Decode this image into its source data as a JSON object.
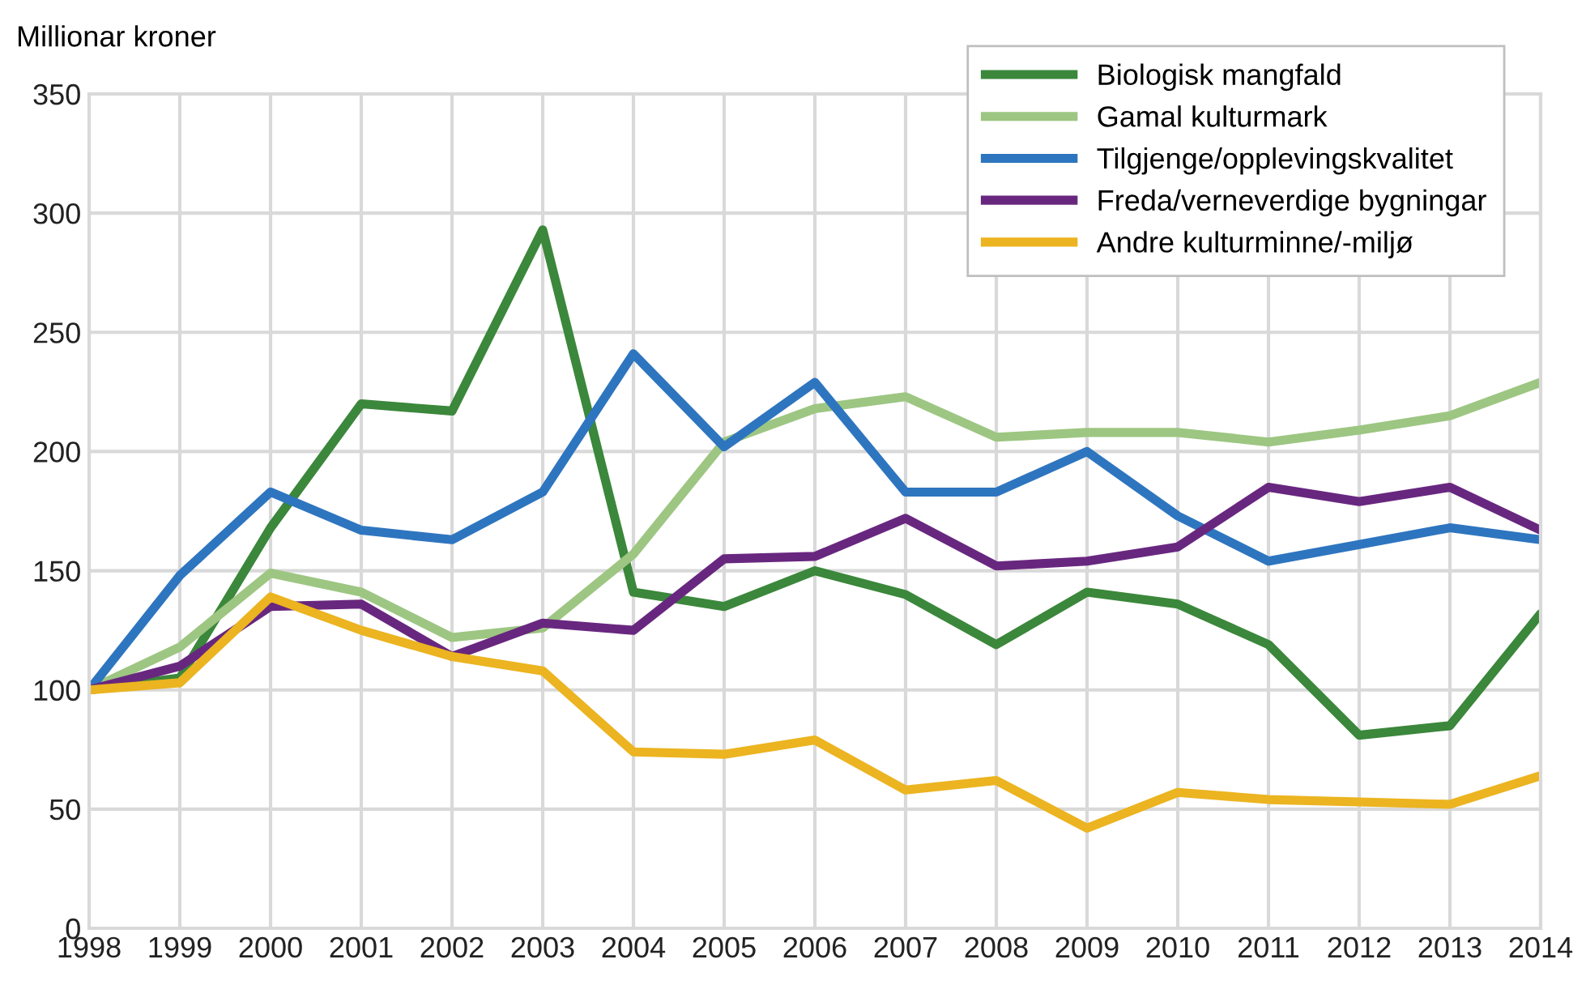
{
  "chart_data": {
    "type": "line",
    "ylabel": "Millionar kroner",
    "categories": [
      "1998",
      "1999",
      "2000",
      "2001",
      "2002",
      "2003",
      "2004",
      "2005",
      "2006",
      "2007",
      "2008",
      "2009",
      "2010",
      "2011",
      "2012",
      "2013",
      "2014"
    ],
    "series": [
      {
        "name": "Biologisk mangfald",
        "color": "#3b873b",
        "values": [
          100,
          105,
          168,
          220,
          217,
          293,
          141,
          135,
          150,
          140,
          119,
          141,
          136,
          119,
          81,
          85,
          132
        ]
      },
      {
        "name": "Gamal kulturmark",
        "color": "#9dc682",
        "values": [
          100,
          118,
          149,
          141,
          122,
          126,
          157,
          204,
          218,
          223,
          206,
          208,
          208,
          204,
          209,
          215,
          229
        ]
      },
      {
        "name": "Tilgjenge/opplevingskvalitet",
        "color": "#2e75bf",
        "values": [
          100,
          148,
          183,
          167,
          163,
          183,
          241,
          202,
          229,
          183,
          183,
          200,
          173,
          154,
          161,
          168,
          163
        ]
      },
      {
        "name": "Freda/verneverdige bygningar",
        "color": "#68277f",
        "values": [
          100,
          110,
          135,
          136,
          114,
          128,
          125,
          155,
          156,
          172,
          152,
          154,
          160,
          185,
          179,
          185,
          167
        ]
      },
      {
        "name": "Andre kulturminne/-miljø",
        "color": "#ebb420",
        "values": [
          100,
          103,
          139,
          125,
          114,
          108,
          74,
          73,
          79,
          58,
          62,
          42,
          57,
          54,
          53,
          52,
          64
        ]
      }
    ],
    "ylim": [
      0,
      350
    ],
    "yticks": [
      0,
      50,
      100,
      150,
      200,
      250,
      300,
      350
    ],
    "grid": true,
    "legend": "top right",
    "line_style": "solid",
    "marker": "none"
  }
}
